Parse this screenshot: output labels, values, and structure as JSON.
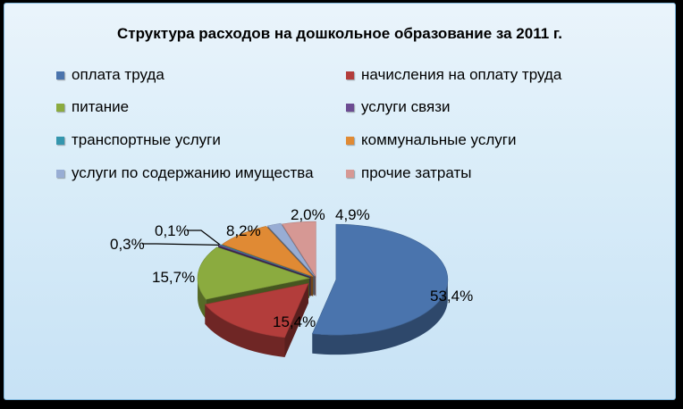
{
  "chart_data": {
    "type": "pie",
    "style": "3d-exploded",
    "title": "Структура расходов на дошкольное образование за 2011 г.",
    "legend_position": "top",
    "slices": [
      {
        "name": "оплата труда",
        "value": 53.4,
        "label": "53,4%",
        "color": "#4a74ad"
      },
      {
        "name": "начисления на оплату труда",
        "value": 15.4,
        "label": "15,4%",
        "color": "#b33d3b"
      },
      {
        "name": "питание",
        "value": 15.7,
        "label": "15,7%",
        "color": "#8bab3f"
      },
      {
        "name": "услуги связи",
        "value": 0.3,
        "label": "0,3%",
        "color": "#6c4c92"
      },
      {
        "name": "транспортные услуги",
        "value": 0.1,
        "label": "0,1%",
        "color": "#3496ae"
      },
      {
        "name": "коммунальные услуги",
        "value": 8.2,
        "label": "8,2%",
        "color": "#e08a34"
      },
      {
        "name": "услуги по содержанию имущества",
        "value": 2.0,
        "label": "2,0%",
        "color": "#98add4"
      },
      {
        "name": "прочие затраты",
        "value": 4.9,
        "label": "4,9%",
        "color": "#d69894"
      }
    ]
  }
}
